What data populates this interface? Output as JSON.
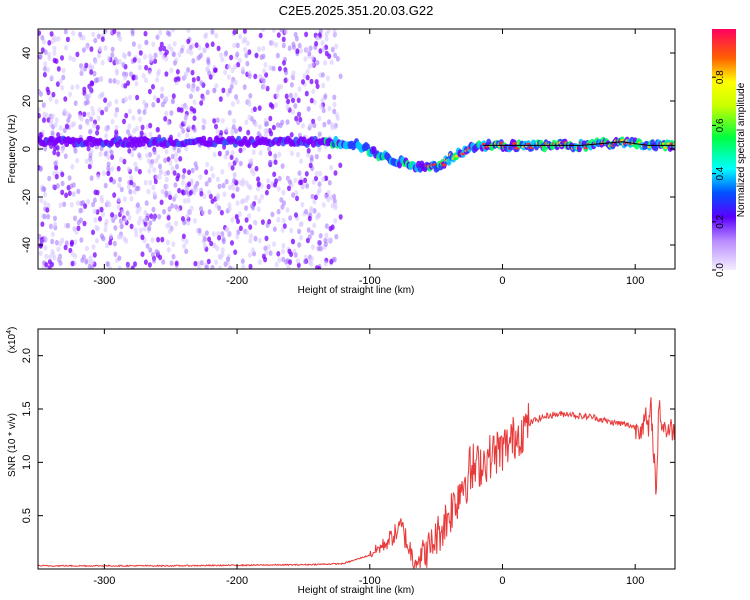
{
  "title": "C2E5.2025.351.20.03.G22",
  "colors": {
    "snr_line": "#e83a3a",
    "ridge_line": "#000000",
    "scatter_strong": "#7a00ff",
    "scatter_weak": "#d9c8ff"
  },
  "chart_data": [
    {
      "type": "heatmap",
      "name": "spectrogram",
      "xlabel": "Height of straight line (km)",
      "ylabel": "Frequency (Hz)",
      "xlim": [
        -350,
        130
      ],
      "ylim": [
        -50,
        50
      ],
      "xticks": [
        -300,
        -200,
        -100,
        0,
        100
      ],
      "yticks": [
        -40,
        -20,
        0,
        20,
        40
      ],
      "grid": false,
      "description_of_signal": "noise speckle for x < -130 km; dominant frequency ridge from about 3 Hz at -130 km dipping to about -8 Hz near -55 km, returning to about 1.5 Hz after -20 km",
      "ridge": {
        "x": [
          -350,
          -300,
          -250,
          -200,
          -150,
          -130,
          -110,
          -95,
          -80,
          -65,
          -55,
          -45,
          -35,
          -25,
          -15,
          0,
          20,
          60,
          90,
          110,
          130
        ],
        "y": [
          3,
          3,
          3,
          3,
          3,
          3,
          2,
          -2,
          -5,
          -7,
          -8,
          -6,
          -2,
          0,
          1.5,
          1.5,
          1.5,
          1.5,
          3,
          1.5,
          1.5
        ]
      },
      "colorbar": {
        "label": "Normalized spectral amplitude",
        "range": [
          0,
          1
        ],
        "ticks": [
          "0.0",
          "0.2",
          "0.4",
          "0.6",
          "0.8"
        ]
      }
    },
    {
      "type": "line",
      "name": "snr",
      "xlabel": "Height of straight line (km)",
      "ylabel": "SNR (10 * v/v)",
      "yscale_label": "(x10",
      "yscale_exp": "4",
      "xlim": [
        -350,
        130
      ],
      "ylim": [
        0,
        2.25
      ],
      "xticks": [
        -300,
        -200,
        -100,
        0,
        100
      ],
      "yticks": [
        0.5,
        1.0,
        1.5,
        2.0
      ],
      "ytick_labels": [
        "0.5",
        "1.0",
        "1.5",
        "2.0"
      ],
      "grid": false,
      "series": [
        {
          "name": "SNR",
          "x": [
            -350,
            -300,
            -250,
            -200,
            -150,
            -120,
            -110,
            -100,
            -95,
            -90,
            -85,
            -80,
            -76,
            -72,
            -68,
            -65,
            -60,
            -55,
            -50,
            -45,
            -40,
            -35,
            -30,
            -25,
            -20,
            -15,
            -10,
            -5,
            0,
            5,
            10,
            15,
            20,
            25,
            30,
            35,
            40,
            45,
            50,
            55,
            60,
            65,
            70,
            75,
            80,
            85,
            90,
            95,
            100,
            105,
            108,
            110,
            112,
            114,
            116,
            118,
            120,
            125,
            130
          ],
          "y": [
            0.03,
            0.03,
            0.03,
            0.035,
            0.04,
            0.05,
            0.09,
            0.13,
            0.18,
            0.22,
            0.28,
            0.34,
            0.4,
            0.25,
            0.12,
            0.1,
            0.13,
            0.2,
            0.3,
            0.4,
            0.52,
            0.65,
            0.82,
            0.9,
            0.95,
            1.0,
            1.05,
            1.1,
            1.12,
            1.18,
            1.25,
            1.3,
            1.36,
            1.4,
            1.42,
            1.44,
            1.45,
            1.45,
            1.46,
            1.44,
            1.43,
            1.43,
            1.42,
            1.4,
            1.38,
            1.37,
            1.36,
            1.35,
            1.33,
            1.34,
            1.4,
            1.3,
            1.5,
            1.1,
            0.7,
            1.6,
            1.35,
            1.3,
            1.32
          ]
        }
      ]
    }
  ]
}
